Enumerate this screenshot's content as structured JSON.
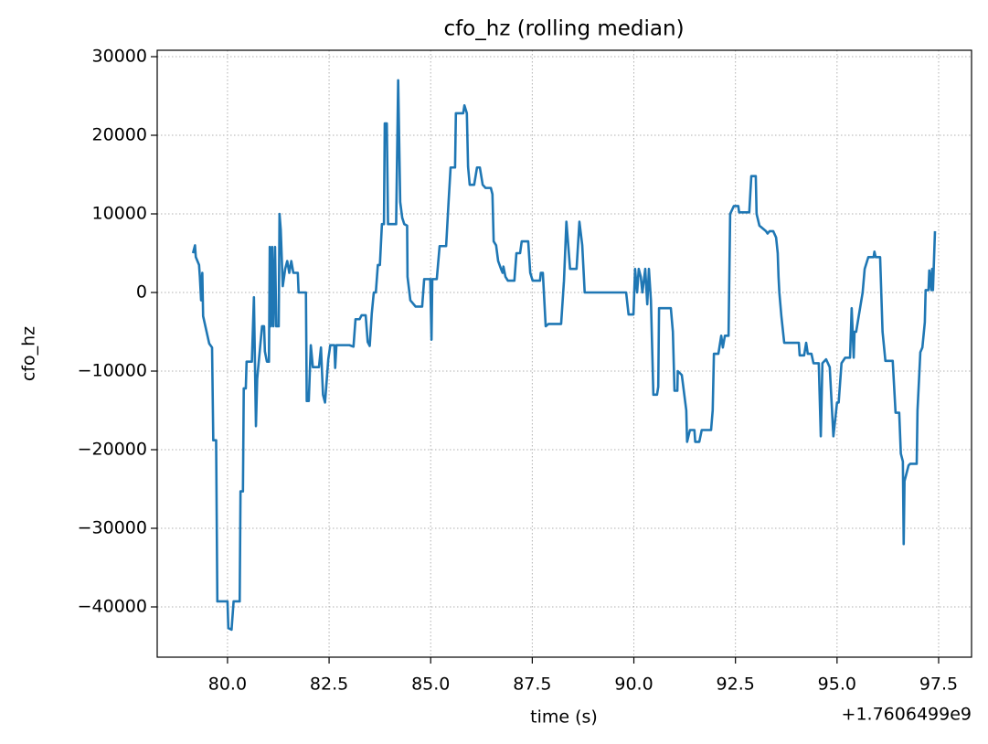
{
  "chart_data": {
    "type": "line",
    "title": "cfo_hz (rolling median)",
    "x_label": "time (s)",
    "y_label": "cfo_hz",
    "x_offset_text": "+1.7606499e9",
    "color": "#1f77b4",
    "grid": true,
    "xlim": [
      78.27,
      98.31
    ],
    "ylim": [
      -46395,
      30814
    ],
    "xticks": [
      {
        "value": 80,
        "label": "80.0"
      },
      {
        "value": 82.5,
        "label": "82.5"
      },
      {
        "value": 85,
        "label": "85.0"
      },
      {
        "value": 87.5,
        "label": "87.5"
      },
      {
        "value": 90,
        "label": "90.0"
      },
      {
        "value": 92.5,
        "label": "92.5"
      },
      {
        "value": 95,
        "label": "95.0"
      },
      {
        "value": 97.5,
        "label": "97.5"
      }
    ],
    "yticks": [
      {
        "value": -40000,
        "label": "−40000"
      },
      {
        "value": -30000,
        "label": "−30000"
      },
      {
        "value": -20000,
        "label": "−20000"
      },
      {
        "value": -10000,
        "label": "−10000"
      },
      0,
      10000,
      20000,
      30000
    ],
    "x": [
      79.15,
      79.2,
      79.22,
      79.3,
      79.32,
      79.35,
      79.38,
      79.4,
      79.55,
      79.62,
      79.65,
      79.72,
      79.75,
      80.0,
      80.02,
      80.1,
      80.15,
      80.3,
      80.32,
      80.38,
      80.4,
      80.45,
      80.47,
      80.6,
      80.65,
      80.7,
      80.73,
      80.85,
      80.9,
      80.92,
      80.97,
      81.02,
      81.04,
      81.07,
      81.1,
      81.13,
      81.17,
      81.2,
      81.26,
      81.28,
      81.31,
      81.36,
      81.42,
      81.47,
      81.52,
      81.57,
      81.62,
      81.73,
      81.75,
      81.93,
      81.95,
      82.0,
      82.05,
      82.1,
      82.25,
      82.3,
      82.35,
      82.4,
      82.48,
      82.53,
      82.63,
      82.65,
      82.68,
      83.0,
      83.1,
      83.15,
      83.25,
      83.3,
      83.4,
      83.45,
      83.5,
      83.55,
      83.6,
      83.65,
      83.7,
      83.75,
      83.8,
      83.85,
      83.87,
      83.92,
      83.95,
      84.15,
      84.2,
      84.25,
      84.3,
      84.35,
      84.42,
      84.43,
      84.5,
      84.63,
      84.79,
      84.84,
      84.99,
      85.02,
      85.04,
      85.15,
      85.22,
      85.38,
      85.44,
      85.49,
      85.6,
      85.62,
      85.8,
      85.83,
      85.89,
      85.92,
      85.96,
      86.07,
      86.14,
      86.21,
      86.28,
      86.35,
      86.48,
      86.52,
      86.55,
      86.61,
      86.66,
      86.73,
      86.77,
      86.79,
      86.84,
      86.9,
      87.06,
      87.11,
      87.2,
      87.24,
      87.4,
      87.45,
      87.51,
      87.69,
      87.71,
      87.76,
      87.83,
      87.9,
      88.21,
      88.28,
      88.34,
      88.43,
      88.59,
      88.66,
      88.73,
      88.79,
      89.81,
      89.87,
      89.99,
      90.03,
      90.08,
      90.12,
      90.17,
      90.21,
      90.28,
      90.33,
      90.37,
      90.42,
      90.48,
      90.57,
      90.6,
      90.62,
      90.91,
      90.96,
      91.0,
      91.07,
      91.08,
      91.18,
      91.29,
      91.31,
      91.38,
      91.49,
      91.51,
      91.61,
      91.67,
      91.9,
      91.94,
      91.97,
      92.08,
      92.15,
      92.19,
      92.24,
      92.33,
      92.37,
      92.46,
      92.57,
      92.59,
      92.84,
      92.89,
      93.0,
      93.02,
      93.09,
      93.25,
      93.29,
      93.34,
      93.43,
      93.5,
      93.54,
      93.56,
      93.58,
      93.63,
      93.7,
      94.06,
      94.08,
      94.19,
      94.24,
      94.28,
      94.37,
      94.42,
      94.55,
      94.6,
      94.64,
      94.73,
      94.82,
      94.91,
      95.0,
      95.04,
      95.11,
      95.2,
      95.32,
      95.36,
      95.41,
      95.43,
      95.47,
      95.63,
      95.68,
      95.77,
      95.9,
      95.92,
      95.95,
      96.06,
      96.12,
      96.19,
      96.37,
      96.44,
      96.53,
      96.57,
      96.62,
      96.64,
      96.66,
      96.76,
      96.8,
      96.96,
      96.98,
      97.05,
      97.1,
      97.16,
      97.18,
      97.25,
      97.27,
      97.32,
      97.34,
      97.36,
      97.41
    ],
    "values": [
      5000,
      6000,
      4500,
      3500,
      2000,
      -1000,
      2500,
      -3000,
      -6500,
      -7000,
      -18800,
      -18800,
      -39300,
      -39300,
      -42700,
      -42900,
      -39300,
      -39300,
      -25300,
      -25300,
      -12200,
      -12200,
      -8800,
      -8800,
      -600,
      -17000,
      -11000,
      -4300,
      -4300,
      -7500,
      -8800,
      -8800,
      5800,
      -4300,
      5800,
      -4300,
      5800,
      -4300,
      -4300,
      10000,
      8000,
      800,
      3000,
      4000,
      2500,
      4000,
      2500,
      2500,
      0,
      0,
      -13800,
      -13800,
      -6700,
      -9500,
      -9500,
      -7000,
      -13000,
      -14000,
      -8500,
      -6700,
      -6700,
      -9600,
      -6700,
      -6700,
      -6900,
      -3400,
      -3400,
      -2900,
      -2900,
      -6300,
      -6800,
      -2700,
      0,
      0,
      3500,
      3500,
      8700,
      8700,
      21500,
      21500,
      8700,
      8700,
      27000,
      11500,
      9500,
      8700,
      8500,
      2000,
      -1000,
      -1800,
      -1800,
      1700,
      1700,
      -6000,
      1700,
      1700,
      5900,
      5900,
      11500,
      15900,
      15900,
      22800,
      22800,
      23800,
      22800,
      16000,
      13700,
      13700,
      15900,
      15900,
      13700,
      13300,
      13300,
      12500,
      6500,
      6000,
      4000,
      3000,
      2500,
      3300,
      2000,
      1500,
      1500,
      5000,
      5000,
      6500,
      6500,
      2500,
      1500,
      1500,
      2500,
      2500,
      -4300,
      -4000,
      -4000,
      1500,
      9000,
      3000,
      3000,
      9000,
      6000,
      0,
      0,
      -2800,
      -2800,
      3000,
      0,
      3000,
      2000,
      0,
      3000,
      -1500,
      3000,
      -1000,
      -13000,
      -13000,
      -12000,
      -2000,
      -2000,
      -5000,
      -12500,
      -12500,
      -10000,
      -10500,
      -15000,
      -19000,
      -17500,
      -17500,
      -19000,
      -19000,
      -17500,
      -17500,
      -15000,
      -7800,
      -7800,
      -5500,
      -7000,
      -5500,
      -5500,
      10000,
      11000,
      11000,
      10200,
      10200,
      14800,
      14800,
      10000,
      8500,
      7800,
      7500,
      7800,
      7800,
      7000,
      5000,
      2000,
      0,
      -3000,
      -6400,
      -6400,
      -8000,
      -8000,
      -6400,
      -7800,
      -7800,
      -9000,
      -9000,
      -18300,
      -9000,
      -8500,
      -9500,
      -18300,
      -14000,
      -14000,
      -9000,
      -8300,
      -8300,
      -2000,
      -8300,
      -5000,
      -5000,
      0,
      3000,
      4500,
      4500,
      5200,
      4500,
      4500,
      -5000,
      -8700,
      -8700,
      -15300,
      -15300,
      -20500,
      -21500,
      -32000,
      -24000,
      -22000,
      -21800,
      -21800,
      -15000,
      -7600,
      -7000,
      -3800,
      300,
      300,
      2800,
      300,
      3000,
      300,
      7800
    ]
  }
}
